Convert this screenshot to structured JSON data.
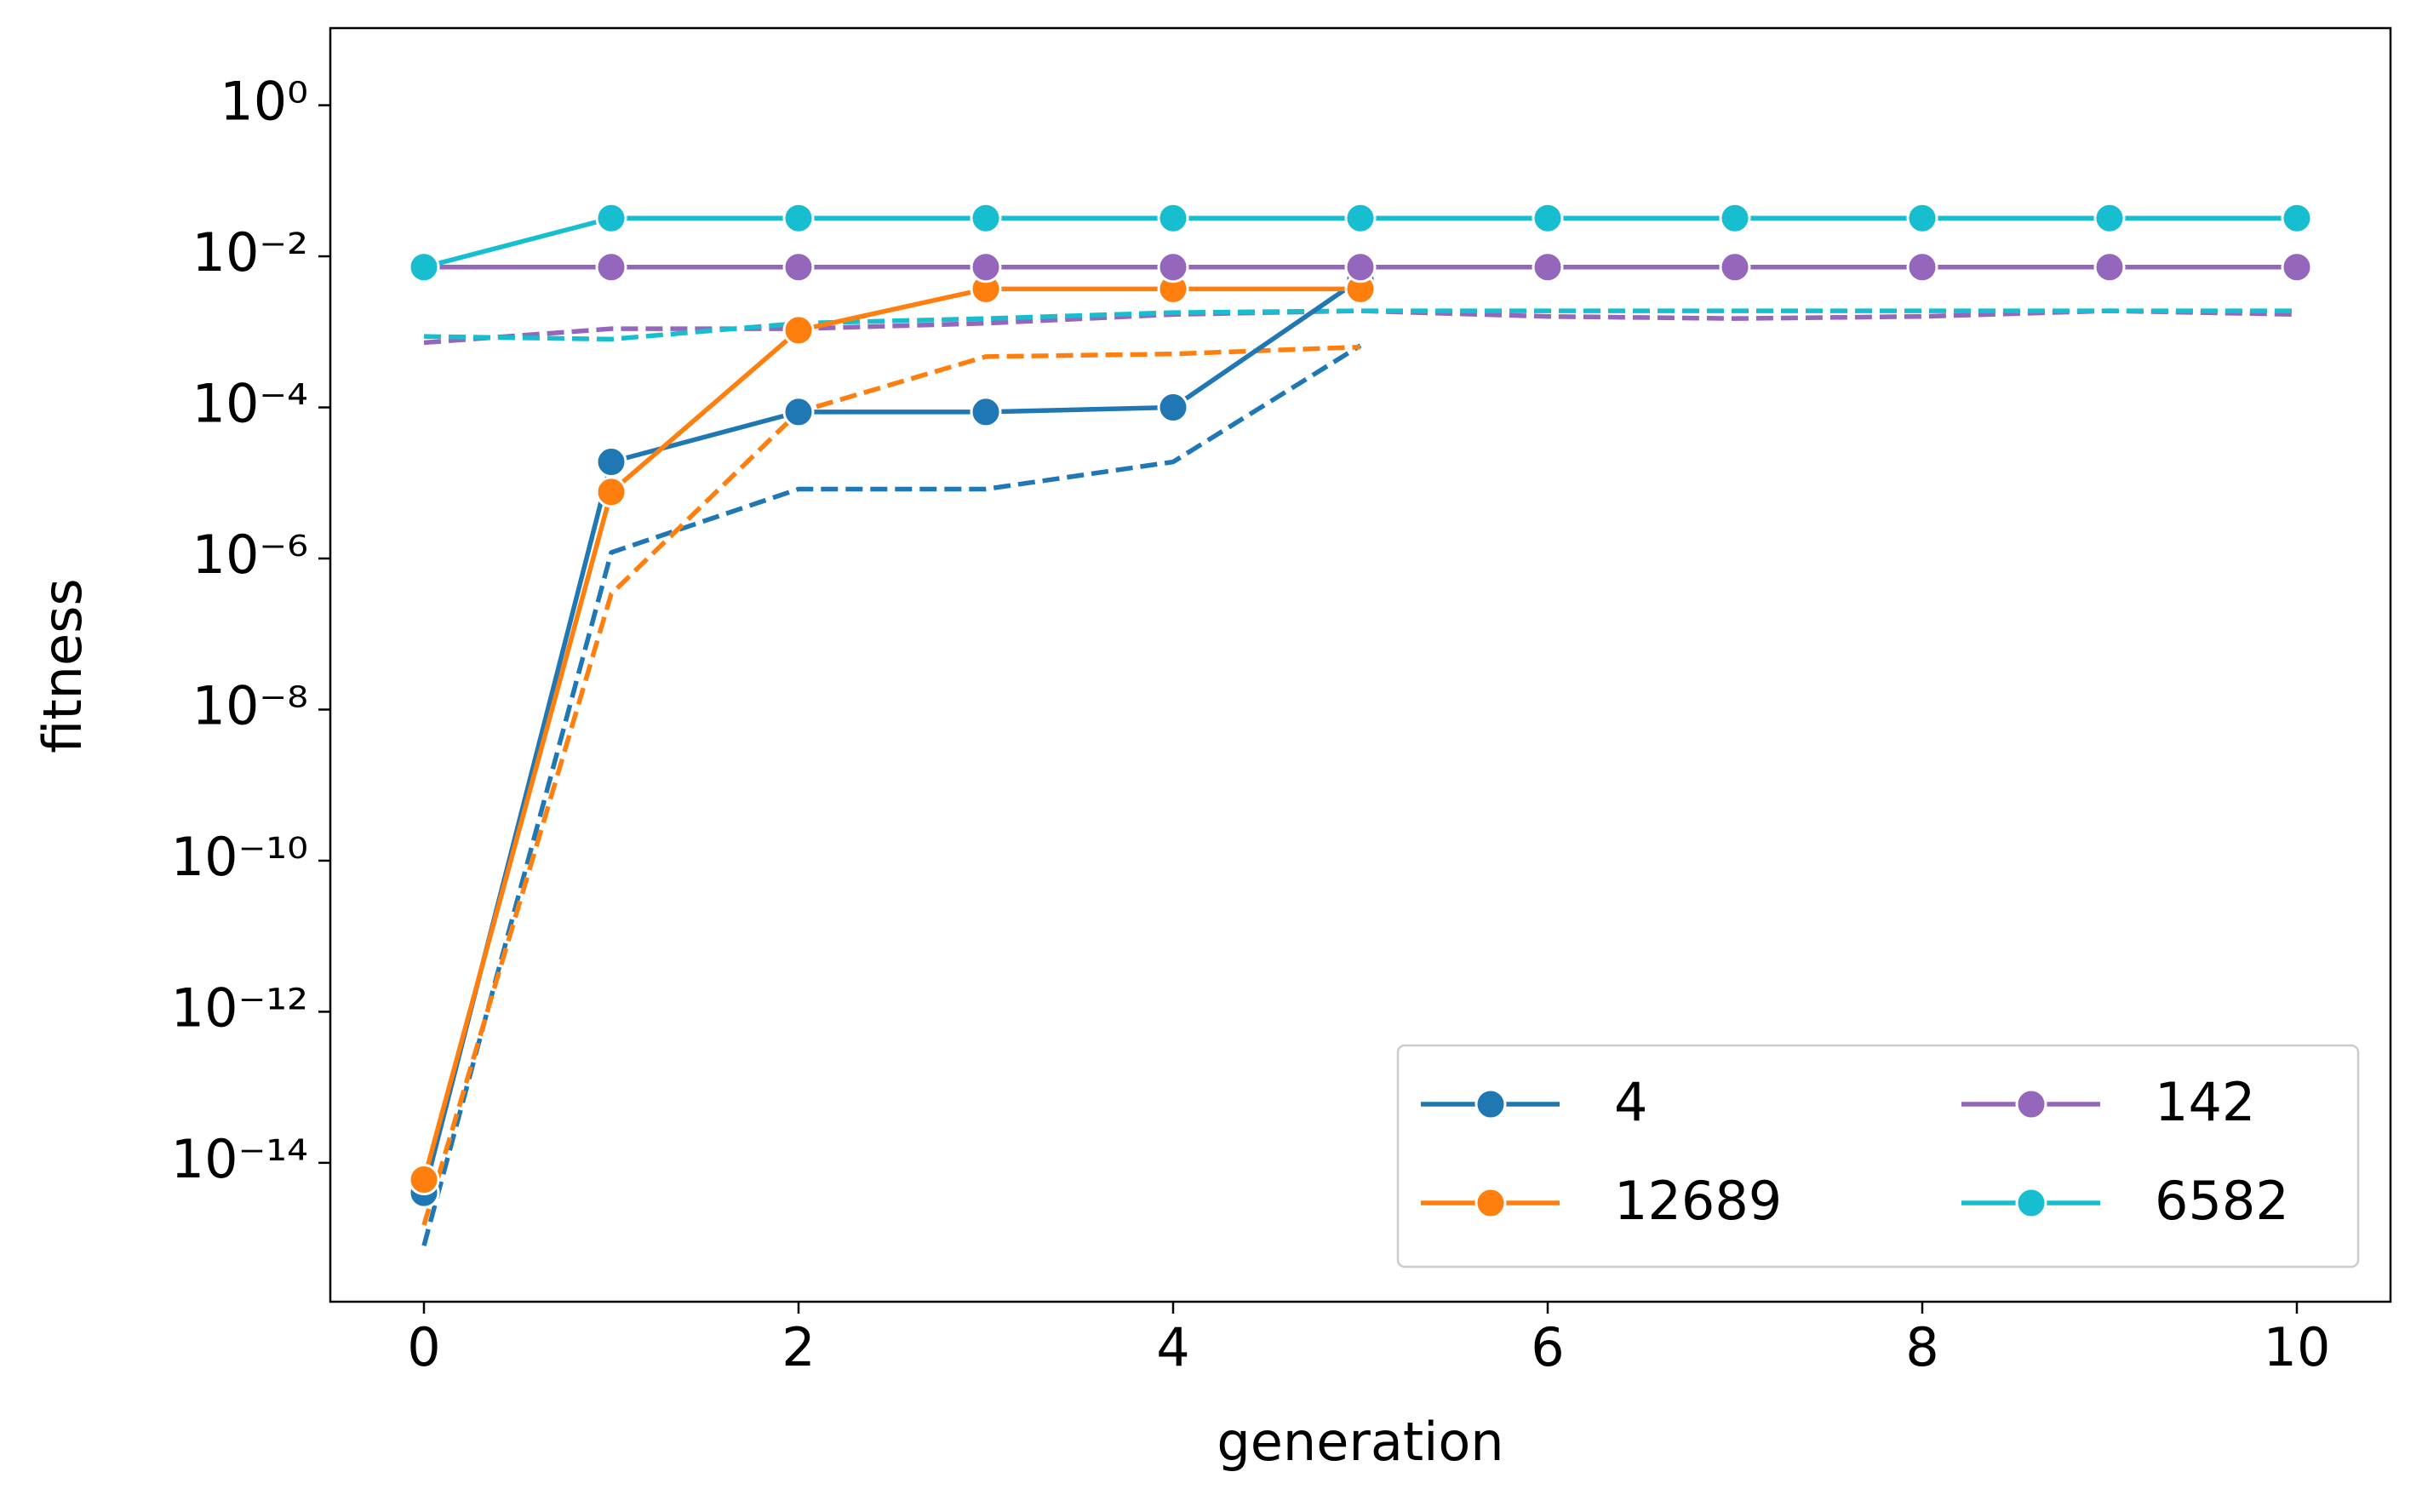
{
  "chart_data": {
    "type": "line",
    "x_label": "generation",
    "y_label": "fitness",
    "x": [
      0,
      1,
      2,
      3,
      4,
      5,
      6,
      7,
      8,
      9,
      10
    ],
    "xlim": [
      -0.5,
      10.5
    ],
    "xticks": [
      0,
      2,
      4,
      6,
      8,
      10
    ],
    "yscale": "log",
    "ylim": [
      1.45e-16,
      10.5
    ],
    "yticks": [
      {
        "value": 1,
        "label": "10⁰"
      },
      {
        "value": 0.01,
        "label": "10⁻²"
      },
      {
        "value": 0.0001,
        "label": "10⁻⁴"
      },
      {
        "value": 1e-06,
        "label": "10⁻⁶"
      },
      {
        "value": 1e-08,
        "label": "10⁻⁸"
      },
      {
        "value": 1e-10,
        "label": "10⁻¹⁰"
      },
      {
        "value": 1e-12,
        "label": "10⁻¹²"
      },
      {
        "value": 1e-14,
        "label": "10⁻¹⁴"
      }
    ],
    "grid": false,
    "legend": "lower right",
    "series": [
      {
        "name": "4",
        "color": "#1f77b4",
        "values": [
          4e-15,
          1.9e-05,
          8.7e-05,
          8.7e-05,
          0.0001,
          0.005,
          null,
          null,
          null,
          null,
          null
        ],
        "dashed_values": [
          8e-16,
          1.2e-06,
          8.3e-06,
          8.3e-06,
          1.9e-05,
          0.00066,
          null,
          null,
          null,
          null,
          null
        ]
      },
      {
        "name": "12689",
        "color": "#ff7f0e",
        "values": [
          6e-15,
          7.6e-06,
          0.00105,
          0.0037,
          0.0037,
          0.0037,
          null,
          null,
          null,
          null,
          null
        ],
        "dashed_values": [
          1.5e-15,
          3.4e-07,
          8.7e-05,
          0.00047,
          0.00051,
          0.00063,
          null,
          null,
          null,
          null,
          null
        ]
      },
      {
        "name": "142",
        "color": "#9467bd",
        "values": [
          0.0072,
          0.0072,
          0.0072,
          0.0072,
          0.0072,
          0.0072,
          0.0072,
          0.0072,
          0.0072,
          0.0072,
          0.0072
        ],
        "dashed_values": [
          0.00072,
          0.0011,
          0.0011,
          0.0013,
          0.0017,
          0.0019,
          0.0016,
          0.0015,
          0.0016,
          0.0019,
          0.0017
        ]
      },
      {
        "name": "6582",
        "color": "#17becf",
        "values": [
          0.0072,
          0.032,
          0.032,
          0.032,
          0.032,
          0.032,
          0.032,
          0.032,
          0.032,
          0.032,
          0.032
        ],
        "dashed_values": [
          0.00087,
          0.0008,
          0.0013,
          0.0015,
          0.0018,
          0.0019,
          0.0019,
          0.0019,
          0.0019,
          0.0019,
          0.0019
        ]
      }
    ]
  }
}
